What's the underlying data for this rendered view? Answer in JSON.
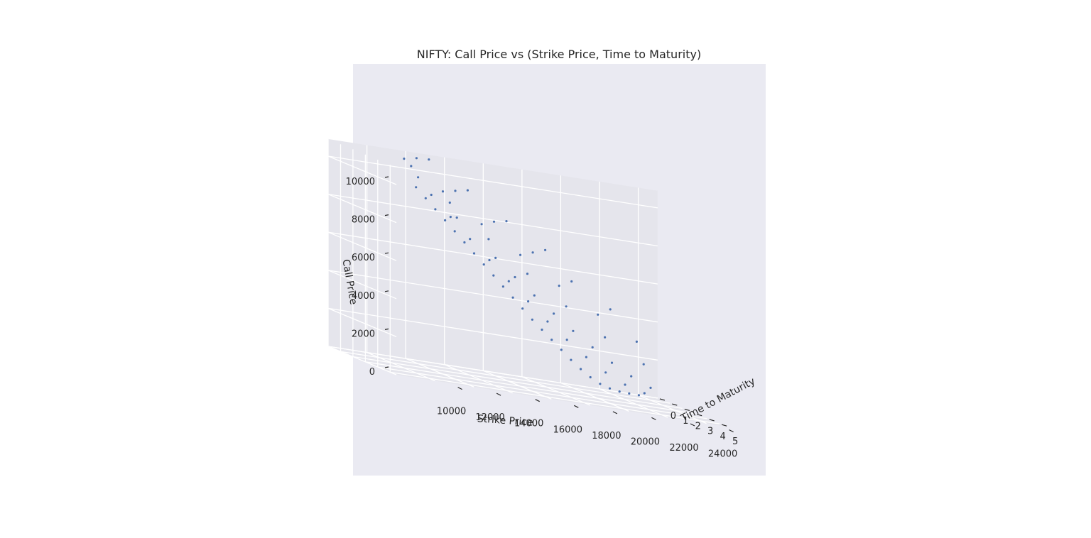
{
  "chart_data": {
    "type": "scatter",
    "projection": "3d",
    "title": "NIFTY: Call Price vs (Strike Price, Time to Maturity)",
    "xlabel": "Strike Price",
    "ylabel": "Time to Maturity",
    "zlabel": "Call Price",
    "xticks": [
      10000,
      12000,
      14000,
      16000,
      18000,
      20000,
      22000,
      24000
    ],
    "yticks": [
      0,
      1,
      2,
      3,
      4,
      5
    ],
    "zticks": [
      0,
      2000,
      4000,
      6000,
      8000,
      10000
    ],
    "xticklabels": [
      "10000",
      "12000",
      "14000",
      "16000",
      "18000",
      "20000",
      "22000",
      "24000"
    ],
    "yticklabels": [
      "0",
      "1",
      "2",
      "3",
      "4",
      "5"
    ],
    "zticklabels": [
      "0",
      "2000",
      "4000",
      "6000",
      "8000",
      "10000"
    ],
    "xlim": [
      8000,
      25000
    ],
    "ylim": [
      0,
      5.5
    ],
    "zlim": [
      0,
      10000
    ],
    "grid": true,
    "legend": "none",
    "colors": {
      "background": "#eaeaf2",
      "pane": "#e5e5ec",
      "grid": "#ffffff",
      "marker": "#4c72b0",
      "text": "#262626"
    },
    "series": [
      {
        "values": [
          [
            12500,
            0.05,
            9100
          ],
          [
            13000,
            0.05,
            8600
          ],
          [
            13500,
            0.05,
            8100
          ],
          [
            14000,
            0.05,
            7600
          ],
          [
            14500,
            0.05,
            7100
          ],
          [
            15000,
            0.05,
            6600
          ],
          [
            15500,
            0.05,
            6100
          ],
          [
            16000,
            0.05,
            5600
          ],
          [
            16500,
            0.05,
            5100
          ],
          [
            17000,
            0.05,
            4600
          ],
          [
            17500,
            0.05,
            4100
          ],
          [
            18000,
            0.05,
            3600
          ],
          [
            18500,
            0.05,
            3100
          ],
          [
            19000,
            0.05,
            2650
          ],
          [
            19500,
            0.05,
            2200
          ],
          [
            20000,
            0.05,
            1750
          ],
          [
            20500,
            0.05,
            1300
          ],
          [
            21000,
            0.05,
            900
          ],
          [
            21500,
            0.05,
            550
          ],
          [
            22000,
            0.05,
            280
          ],
          [
            22500,
            0.05,
            120
          ],
          [
            23000,
            0.05,
            40
          ],
          [
            23500,
            0.05,
            15
          ],
          [
            24000,
            0.05,
            5
          ],
          [
            13000,
            0.5,
            8900
          ],
          [
            14000,
            0.5,
            7900
          ],
          [
            15000,
            0.5,
            6900
          ],
          [
            16000,
            0.5,
            5950
          ],
          [
            17000,
            0.5,
            5000
          ],
          [
            18000,
            0.5,
            4100
          ],
          [
            19000,
            0.5,
            3200
          ],
          [
            20000,
            0.5,
            2400
          ],
          [
            21000,
            0.5,
            1650
          ],
          [
            22000,
            0.5,
            1000
          ],
          [
            23000,
            0.5,
            520
          ],
          [
            24000,
            0.5,
            230
          ],
          [
            12000,
            1.0,
            9800
          ],
          [
            14000,
            1.0,
            8000
          ],
          [
            16000,
            1.0,
            6200
          ],
          [
            17000,
            1.0,
            5350
          ],
          [
            18000,
            1.0,
            4550
          ],
          [
            19000,
            1.0,
            3750
          ],
          [
            20000,
            1.0,
            3000
          ],
          [
            21000,
            1.0,
            2300
          ],
          [
            22000,
            1.0,
            1650
          ],
          [
            23000,
            1.0,
            1100
          ],
          [
            24000,
            1.0,
            650
          ],
          [
            11000,
            2.0,
            10500
          ],
          [
            13000,
            2.0,
            8900
          ],
          [
            15000,
            2.0,
            7300
          ],
          [
            17000,
            2.0,
            5800
          ],
          [
            19000,
            2.0,
            4400
          ],
          [
            21000,
            2.0,
            3100
          ],
          [
            23000,
            2.0,
            2000
          ],
          [
            10000,
            3.0,
            11000
          ],
          [
            12000,
            3.0,
            9600
          ],
          [
            14000,
            3.0,
            8200
          ],
          [
            16000,
            3.0,
            6900
          ],
          [
            18000,
            3.0,
            5600
          ],
          [
            20000,
            3.0,
            4400
          ],
          [
            22000,
            3.0,
            3300
          ],
          [
            10000,
            4.0,
            11300
          ],
          [
            12000,
            4.0,
            9900
          ],
          [
            14000,
            4.0,
            8600
          ],
          [
            16000,
            4.0,
            7300
          ],
          [
            18000,
            4.0,
            6100
          ],
          [
            20000,
            4.0,
            4950
          ],
          [
            10000,
            5.0,
            11500
          ],
          [
            12000,
            5.0,
            10200
          ],
          [
            14000,
            5.0,
            8900
          ],
          [
            16000,
            5.0,
            7700
          ]
        ]
      }
    ]
  }
}
